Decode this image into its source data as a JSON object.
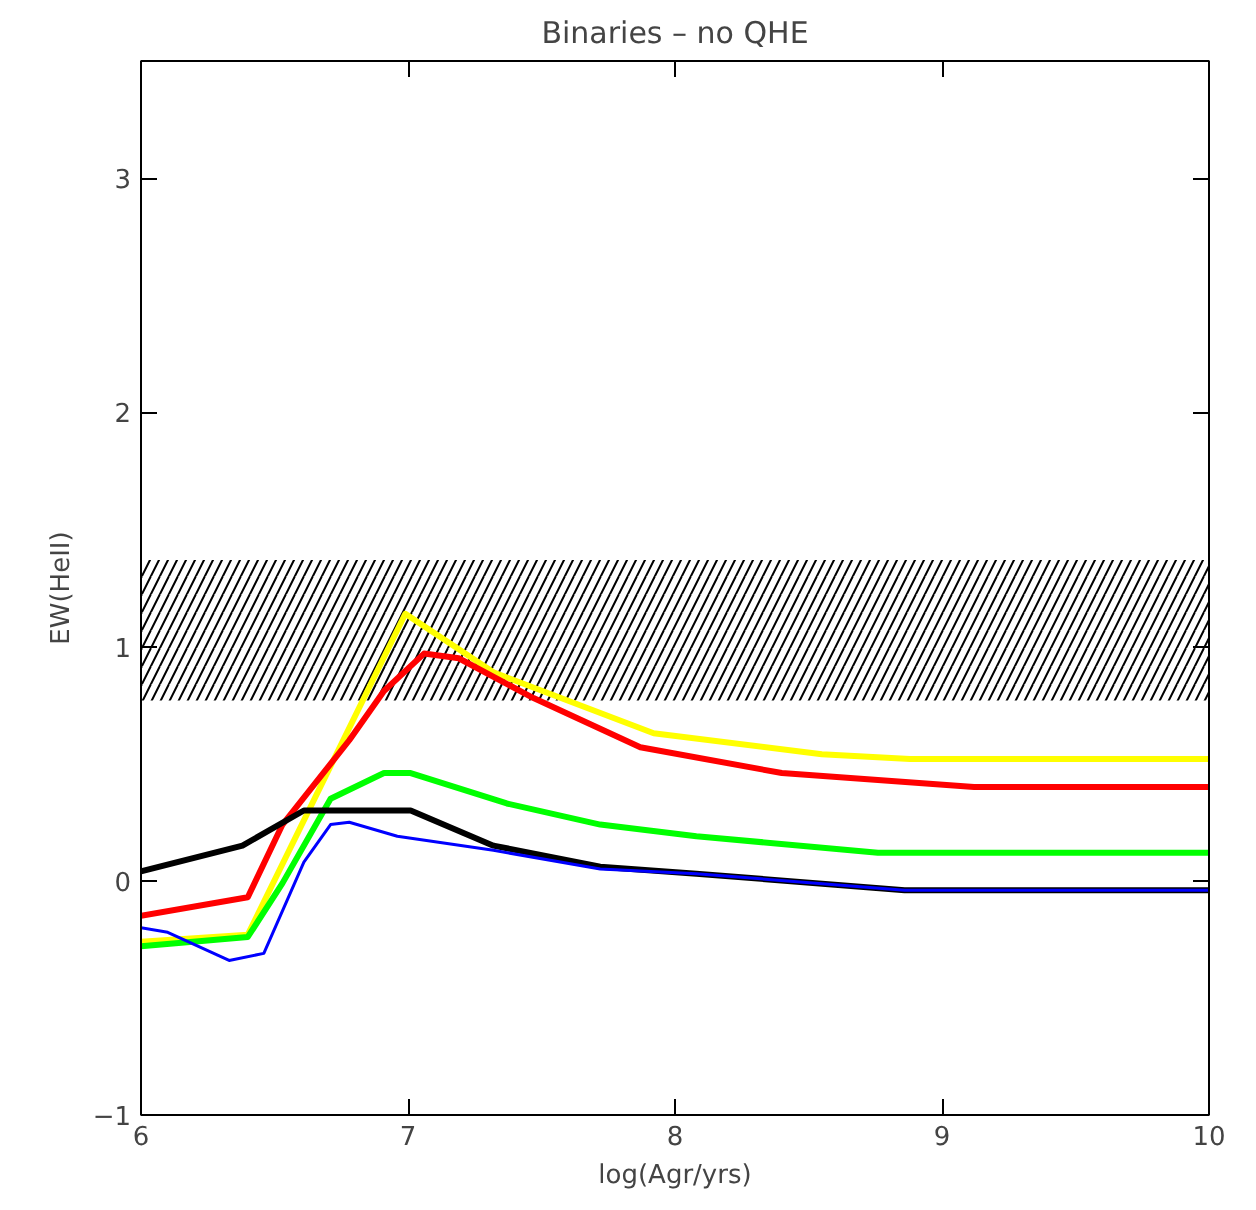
{
  "chart_data": {
    "type": "line",
    "title": "Binaries – no QHE",
    "xlabel": "log(Agr/yrs)",
    "ylabel": "EW(HeII)",
    "xlim": [
      6,
      10
    ],
    "ylim": [
      -1,
      3.5
    ],
    "xticks": [
      6,
      7,
      8,
      9,
      10
    ],
    "yticks": [
      -1,
      0,
      1,
      2,
      3
    ],
    "grid": false,
    "line_style": "solid",
    "marker": "none",
    "bands": [
      {
        "axis": "y",
        "from": 0.77,
        "to": 1.37,
        "color": "#000000"
      }
    ],
    "series": [
      {
        "color": "#ffff00",
        "x": [
          6,
          6.4,
          6.99,
          7.32,
          7.92,
          8.55,
          8.88,
          10
        ],
        "values": [
          -0.26,
          -0.23,
          1.14,
          0.89,
          0.63,
          0.54,
          0.52,
          0.52
        ]
      },
      {
        "color": "#ff0000",
        "x": [
          6,
          6.4,
          6.53,
          6.78,
          6.91,
          7.06,
          7.19,
          7.47,
          7.87,
          8.4,
          9.12,
          10
        ],
        "values": [
          -0.15,
          -0.07,
          0.24,
          0.6,
          0.81,
          0.97,
          0.95,
          0.78,
          0.57,
          0.46,
          0.4,
          0.4
        ]
      },
      {
        "color": "#00ff00",
        "x": [
          6,
          6.4,
          6.53,
          6.71,
          6.91,
          7.01,
          7.37,
          7.72,
          8.08,
          8.76,
          10
        ],
        "values": [
          -0.28,
          -0.24,
          -0.01,
          0.35,
          0.46,
          0.46,
          0.33,
          0.24,
          0.19,
          0.12,
          0.12
        ]
      },
      {
        "color": "#000000",
        "x": [
          6,
          6.38,
          6.61,
          7.01,
          7.32,
          7.72,
          8.08,
          8.86,
          10
        ],
        "values": [
          0.04,
          0.15,
          0.3,
          0.3,
          0.15,
          0.06,
          0.03,
          -0.04,
          -0.04
        ]
      },
      {
        "color": "#0000ff",
        "x": [
          6,
          6.1,
          6.33,
          6.46,
          6.61,
          6.71,
          6.78,
          6.96,
          7.32,
          7.72,
          8.08,
          8.86,
          10
        ],
        "values": [
          -0.2,
          -0.22,
          -0.34,
          -0.31,
          0.08,
          0.24,
          0.25,
          0.19,
          0.13,
          0.05,
          0.03,
          -0.04,
          -0.04
        ]
      }
    ]
  }
}
